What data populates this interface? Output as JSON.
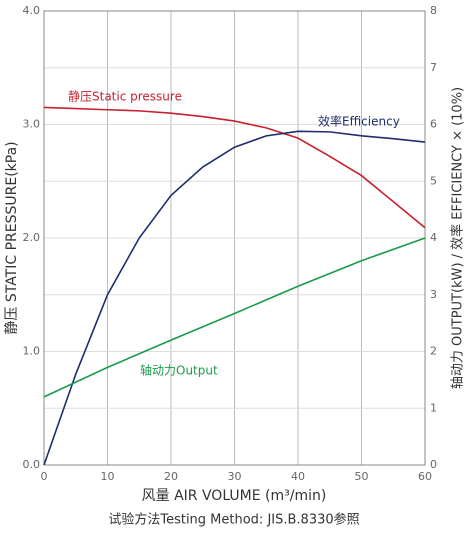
{
  "chart_data": {
    "type": "line",
    "xlabel": "风量 AIR VOLUME (m³/min)",
    "ylabel": "静压 STATIC PRESSURE(kPa)",
    "y2label": "轴动力 OUTPUT(kW) / 效率 EFFICIENCY × (10%)",
    "note": "试验方法Testing Method: JIS.B.8330参照",
    "xlim": [
      0,
      60
    ],
    "xticks": [
      0,
      10,
      20,
      30,
      40,
      50,
      60
    ],
    "ylim": [
      0,
      4
    ],
    "yticks": [
      {
        "value": 0,
        "label": "0.0"
      },
      {
        "value": 1,
        "label": "1.0"
      },
      {
        "value": 2,
        "label": "2.0"
      },
      {
        "value": 3,
        "label": "3.0"
      },
      {
        "value": 4,
        "label": "4.0"
      }
    ],
    "y2lim": [
      0,
      8
    ],
    "y2ticks": [
      0,
      1,
      2,
      3,
      4,
      5,
      6,
      7,
      8
    ],
    "grid": true,
    "series": [
      {
        "name": "静压Static pressure",
        "color": "#c8202f",
        "x": [
          0,
          5,
          10,
          15,
          20,
          25,
          30,
          35,
          40,
          45,
          50,
          55,
          60
        ],
        "values": [
          3.15,
          3.14,
          3.13,
          3.12,
          3.1,
          3.07,
          3.03,
          2.97,
          2.88,
          2.72,
          2.55,
          2.32,
          2.09
        ]
      },
      {
        "name": "效率Efficiency",
        "color": "#1f2d6e",
        "axis": "y2",
        "x": [
          0,
          5,
          10,
          15,
          20,
          25,
          30,
          35,
          40,
          45,
          50,
          55,
          60
        ],
        "values": [
          0,
          1.6,
          3.0,
          4.0,
          4.75,
          5.25,
          5.6,
          5.8,
          5.88,
          5.87,
          5.8,
          5.75,
          5.69
        ]
      },
      {
        "name": "轴动力Output",
        "color": "#1a9a4a",
        "axis": "y2",
        "x": [
          0,
          10,
          20,
          30,
          40,
          50,
          60
        ],
        "values": [
          1.2,
          1.72,
          2.2,
          2.67,
          3.15,
          3.6,
          4.0
        ]
      }
    ]
  }
}
